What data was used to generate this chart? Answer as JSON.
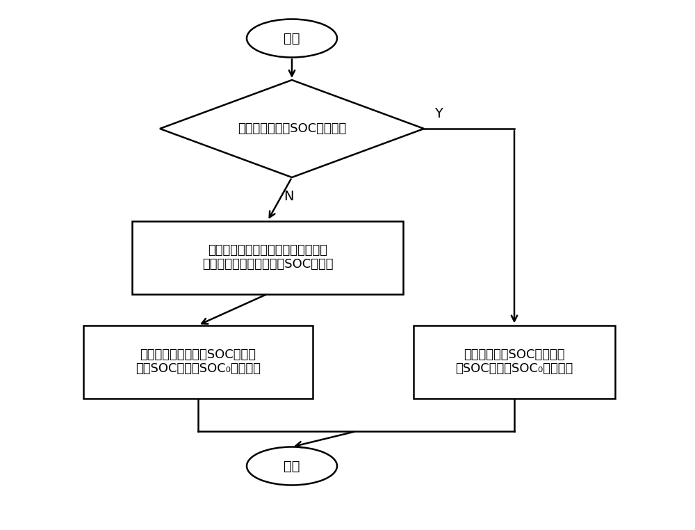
{
  "bg_color": "#ffffff",
  "line_color": "#000000",
  "text_color": "#000000",
  "font_size": 14,
  "font_size_small": 13,
  "start_text": "开始",
  "end_text": "结束",
  "diamond_text": "收到用户设置的SOC维持值？",
  "box1_line1": "获取环境温度，并根据环境温度查表",
  "box1_line2": "，获得与环境温度对应的SOC维持值",
  "box2_line1": "将与环境温度对应的SOC维持值",
  "box2_line2": "作为SOC维持点SOC₀，并输出",
  "box3_line1": "将用户设置的SOC维持值作",
  "box3_line2": "为SOC维持点SOC₀，并输出",
  "label_N": "N",
  "label_Y": "Y"
}
